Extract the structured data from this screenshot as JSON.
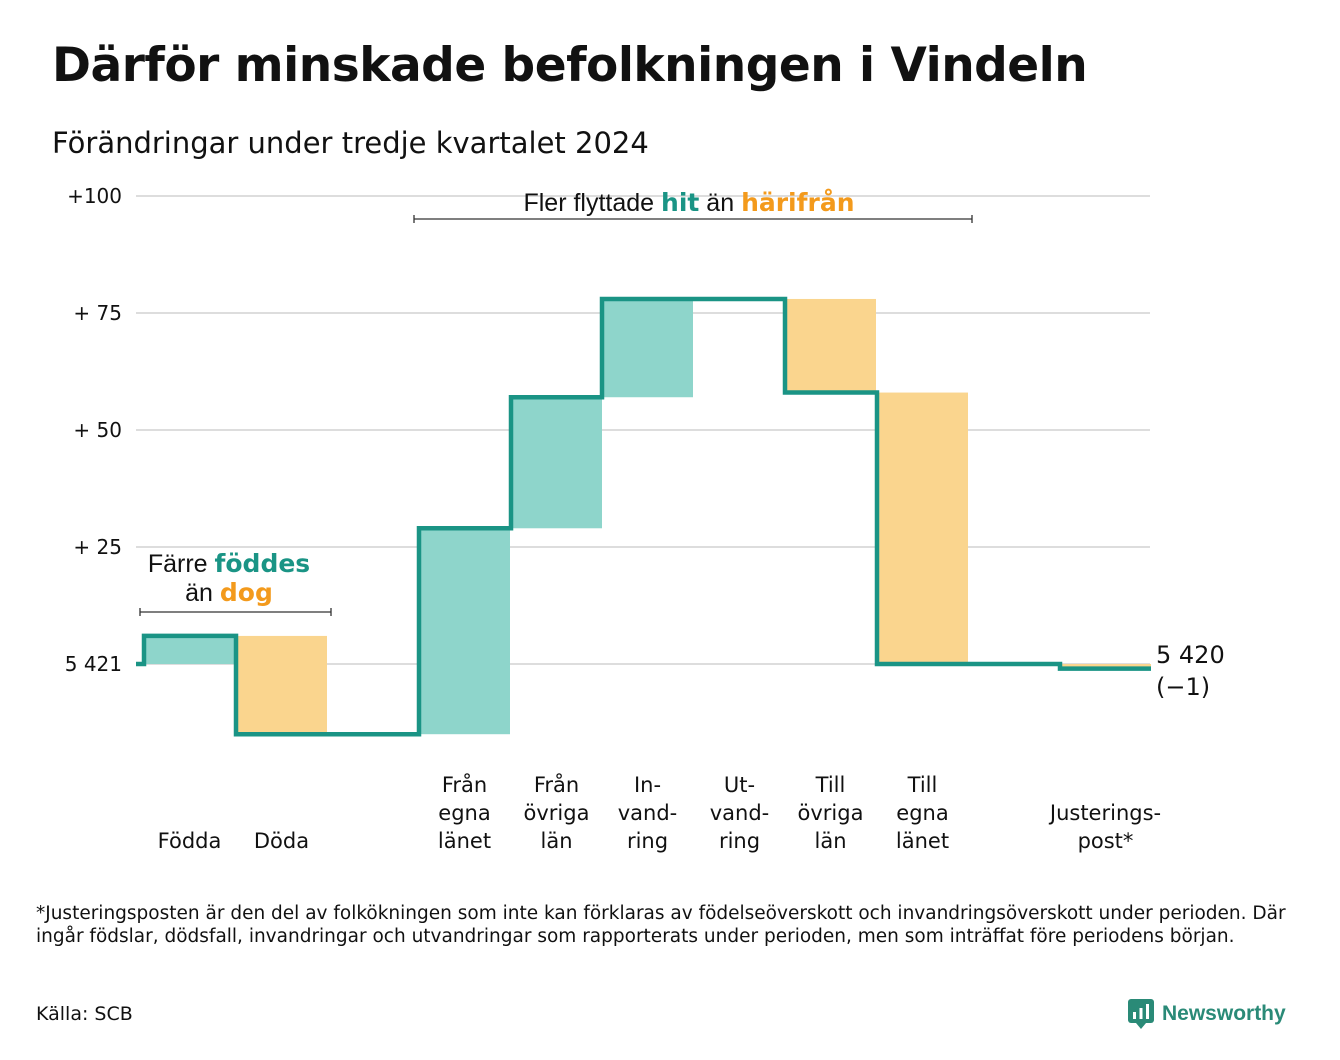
{
  "title": "Därför minskade befolkningen i Vindeln",
  "subtitle": "Förändringar under tredje kvartalet 2024",
  "footnote": "*Justeringsposten är den del av folkökningen som inte kan förklaras av födelseöverskott och invandringsöverskott under perioden. Där ingår födslar, dödsfall, invandringar och utvandringar som rapporterats under perioden, men som inträffat före periodens början.",
  "source": "Källa: SCB",
  "brand": "Newsworthy",
  "colors": {
    "increase": "#8ed5cb",
    "decrease": "#fad58e",
    "line": "#1a9485",
    "accent_increase": "#1a9485",
    "accent_decrease": "#f39a1c",
    "grid": "#dddddd"
  },
  "chart_data": {
    "type": "waterfall",
    "start_value": 5421,
    "end_value": 5420,
    "end_label": "5 420",
    "end_change_label": "(−1)",
    "y_baseline_label": "5 421",
    "y_ticks": [
      {
        "value": 0,
        "label": "5 421"
      },
      {
        "value": 25,
        "label": "+ 25"
      },
      {
        "value": 50,
        "label": "+ 50"
      },
      {
        "value": 75,
        "label": "+ 75"
      },
      {
        "value": 100,
        "label": "+100"
      }
    ],
    "ylim": [
      -15,
      100
    ],
    "steps": [
      {
        "label": [
          "Födda"
        ],
        "change": 6,
        "kind": "increase"
      },
      {
        "label": [
          "Döda"
        ],
        "change": -21,
        "kind": "decrease"
      },
      {
        "label": [
          "Från",
          "egna",
          "länet"
        ],
        "change": 44,
        "kind": "increase"
      },
      {
        "label": [
          "Från",
          "övriga",
          "län"
        ],
        "change": 28,
        "kind": "increase"
      },
      {
        "label": [
          "In-",
          "vand-",
          "ring"
        ],
        "change": 21,
        "kind": "increase"
      },
      {
        "label": [
          "Ut-",
          "vand-",
          "ring"
        ],
        "change": 0,
        "kind": "decrease"
      },
      {
        "label": [
          "Till",
          "övriga",
          "län"
        ],
        "change": -20,
        "kind": "decrease"
      },
      {
        "label": [
          "Till",
          "egna",
          "länet"
        ],
        "change": -58,
        "kind": "decrease"
      },
      {
        "label": [
          "Justerings-",
          "post*"
        ],
        "change": -1,
        "kind": "decrease"
      }
    ],
    "annotations": [
      {
        "parts": [
          [
            {
              "text": "Färre ",
              "style": "plain"
            },
            {
              "text": "föddes",
              "style": "increase"
            }
          ],
          [
            {
              "text": "än ",
              "style": "plain"
            },
            {
              "text": "dog",
              "style": "decrease"
            }
          ]
        ],
        "from_step": 0,
        "to_step": 1
      },
      {
        "parts": [
          [
            {
              "text": "Fler flyttade ",
              "style": "plain"
            },
            {
              "text": "hit",
              "style": "increase"
            },
            {
              "text": " än ",
              "style": "plain"
            },
            {
              "text": "härifrån",
              "style": "decrease"
            }
          ]
        ],
        "from_step": 2,
        "to_step": 7
      }
    ],
    "grid": true,
    "legend": "none"
  }
}
